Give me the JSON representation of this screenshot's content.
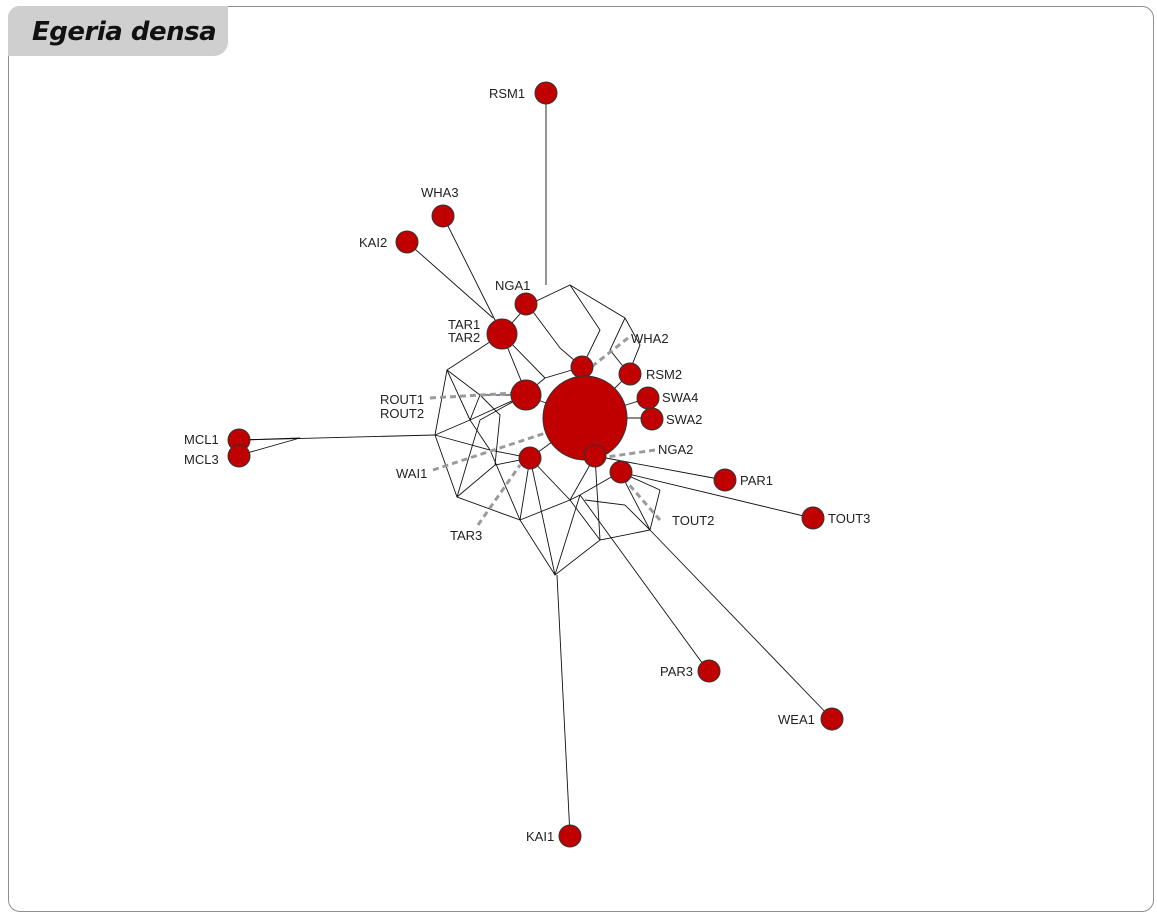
{
  "title": "Egeria densa",
  "colors": {
    "node_fill": "#c00000",
    "node_stroke": "#333333",
    "edge": "#111111",
    "dashed": "#9a9a9a",
    "frame": "#8f8f8f",
    "title_bg": "#cfcfcf"
  },
  "nodes": [
    {
      "id": "RSM1",
      "label": "RSM1"
    },
    {
      "id": "WHA3",
      "label": "WHA3"
    },
    {
      "id": "KAI2",
      "label": "KAI2"
    },
    {
      "id": "NGA1",
      "label": "NGA1"
    },
    {
      "id": "TAR12",
      "label": "TAR1",
      "label2": "TAR2"
    },
    {
      "id": "WHA2",
      "label": "WHA2"
    },
    {
      "id": "RSM2",
      "label": "RSM2"
    },
    {
      "id": "SWA4",
      "label": "SWA4"
    },
    {
      "id": "SWA2",
      "label": "SWA2"
    },
    {
      "id": "ROUT12",
      "label": "ROUT1",
      "label2": "ROUT2"
    },
    {
      "id": "CENTRAL",
      "label": ""
    },
    {
      "id": "MCL1",
      "label": "MCL1"
    },
    {
      "id": "MCL3",
      "label": "MCL3"
    },
    {
      "id": "WAI1",
      "label": "WAI1"
    },
    {
      "id": "NGA2",
      "label": "NGA2"
    },
    {
      "id": "TOUT2",
      "label": "TOUT2"
    },
    {
      "id": "PAR1",
      "label": "PAR1"
    },
    {
      "id": "TOUT3",
      "label": "TOUT3"
    },
    {
      "id": "TAR3",
      "label": "TAR3"
    },
    {
      "id": "PAR3",
      "label": "PAR3"
    },
    {
      "id": "WEA1",
      "label": "WEA1"
    },
    {
      "id": "KAI1",
      "label": "KAI1"
    }
  ]
}
